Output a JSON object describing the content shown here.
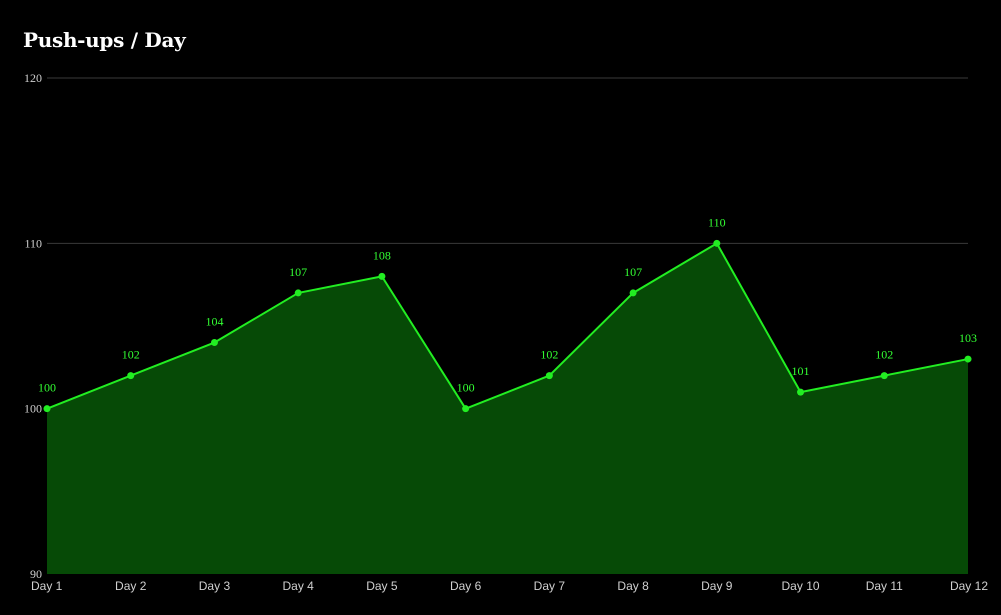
{
  "chart_data": {
    "type": "area",
    "title": "Push-ups / Day",
    "categories": [
      "Day 1",
      "Day 2",
      "Day 3",
      "Day 4",
      "Day 5",
      "Day 6",
      "Day 7",
      "Day 8",
      "Day 9",
      "Day 10",
      "Day 11",
      "Day 12"
    ],
    "values": [
      100,
      102,
      104,
      107,
      108,
      100,
      102,
      107,
      110,
      101,
      102,
      103
    ],
    "ylim": [
      90,
      120
    ],
    "yticks": [
      90,
      100,
      110,
      120
    ],
    "xlabel": "",
    "ylabel": "",
    "grid": true,
    "data_labels": true,
    "legend": "none",
    "colors": {
      "background": "#000000",
      "line": "#22ee22",
      "fill": "#064a06",
      "label": "#33ff33",
      "grid": "#3a3a3a"
    }
  }
}
